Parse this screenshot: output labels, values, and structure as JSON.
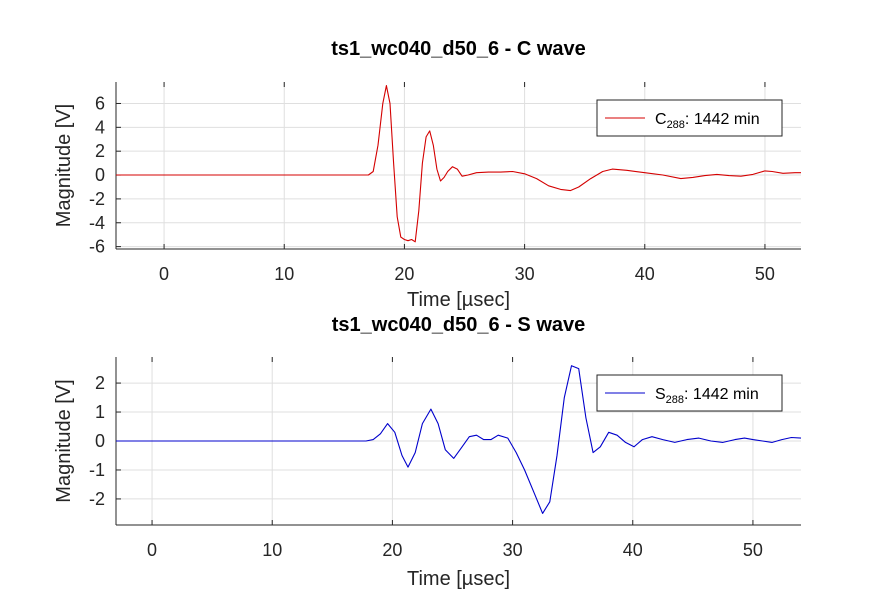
{
  "chart_data": [
    {
      "type": "line",
      "title": "ts1_wc040_d50_6 - C wave",
      "xlabel": "Time [µsec]",
      "ylabel": "Magnitude [V]",
      "xlim": [
        -4,
        53
      ],
      "ylim": [
        -6.2,
        7.8
      ],
      "xticks": [
        0,
        10,
        20,
        30,
        40,
        50
      ],
      "yticks": [
        -6,
        -4,
        -2,
        0,
        2,
        4,
        6
      ],
      "grid": true,
      "legend_position": "top-right",
      "series": [
        {
          "name": "C",
          "legend_sub": "288",
          "legend_suffix": ": 1442 min",
          "color": "#d40000",
          "x": [
            -4,
            17.0,
            17.4,
            17.8,
            18.2,
            18.5,
            18.8,
            19.1,
            19.4,
            19.7,
            20.0,
            20.3,
            20.6,
            20.9,
            21.2,
            21.5,
            21.8,
            22.1,
            22.4,
            22.7,
            23.0,
            23.3,
            23.6,
            24.0,
            24.4,
            24.8,
            25.3,
            26.0,
            27.0,
            28.0,
            29.0,
            30.0,
            31.0,
            32.0,
            33.0,
            33.8,
            34.5,
            35.5,
            36.5,
            37.3,
            38.5,
            40.0,
            41.5,
            43.0,
            44.0,
            45.0,
            46.0,
            47.0,
            48.0,
            49.0,
            50.0,
            50.6,
            51.5,
            52.5,
            53.0
          ],
          "y": [
            0,
            0,
            0.3,
            2.5,
            6.0,
            7.5,
            6.0,
            1.0,
            -3.5,
            -5.2,
            -5.4,
            -5.5,
            -5.4,
            -5.6,
            -3.0,
            1.0,
            3.2,
            3.7,
            2.5,
            0.5,
            -0.5,
            -0.2,
            0.3,
            0.7,
            0.5,
            -0.1,
            0.0,
            0.2,
            0.25,
            0.25,
            0.3,
            0.1,
            -0.3,
            -0.9,
            -1.2,
            -1.3,
            -1.0,
            -0.3,
            0.3,
            0.5,
            0.4,
            0.2,
            0.0,
            -0.3,
            -0.2,
            -0.05,
            0.05,
            -0.05,
            -0.1,
            0.05,
            0.35,
            0.3,
            0.15,
            0.2,
            0.2
          ]
        }
      ]
    },
    {
      "type": "line",
      "title": "ts1_wc040_d50_6 - S wave",
      "xlabel": "Time [µsec]",
      "ylabel": "Magnitude [V]",
      "xlim": [
        -3,
        54
      ],
      "ylim": [
        -2.9,
        2.9
      ],
      "xticks": [
        0,
        10,
        20,
        30,
        40,
        50
      ],
      "yticks": [
        -2,
        -1,
        0,
        1,
        2
      ],
      "grid": true,
      "legend_position": "top-right",
      "series": [
        {
          "name": "S",
          "legend_sub": "288",
          "legend_suffix": ": 1442 min",
          "color": "#0000cc",
          "x": [
            -3,
            17.8,
            18.4,
            19.0,
            19.6,
            20.2,
            20.8,
            21.3,
            21.9,
            22.5,
            23.2,
            23.8,
            24.4,
            25.1,
            25.8,
            26.4,
            27.0,
            27.6,
            28.2,
            28.8,
            29.6,
            30.3,
            31.0,
            31.8,
            32.5,
            33.1,
            33.7,
            34.3,
            34.9,
            35.5,
            36.1,
            36.7,
            37.3,
            38.0,
            38.7,
            39.4,
            40.1,
            40.8,
            41.6,
            42.5,
            43.5,
            44.5,
            45.5,
            46.5,
            47.5,
            48.5,
            49.3,
            50.0,
            50.8,
            51.6,
            52.4,
            53.2,
            54.0
          ],
          "y": [
            0,
            0,
            0.05,
            0.25,
            0.6,
            0.3,
            -0.5,
            -0.9,
            -0.4,
            0.6,
            1.1,
            0.6,
            -0.3,
            -0.6,
            -0.2,
            0.15,
            0.2,
            0.05,
            0.05,
            0.2,
            0.1,
            -0.4,
            -1.0,
            -1.8,
            -2.5,
            -2.1,
            -0.5,
            1.5,
            2.6,
            2.5,
            0.8,
            -0.4,
            -0.2,
            0.3,
            0.2,
            -0.05,
            -0.2,
            0.05,
            0.15,
            0.05,
            -0.05,
            0.05,
            0.1,
            0.0,
            -0.05,
            0.05,
            0.1,
            0.05,
            0.0,
            -0.05,
            0.05,
            0.12,
            0.1
          ]
        }
      ]
    }
  ]
}
